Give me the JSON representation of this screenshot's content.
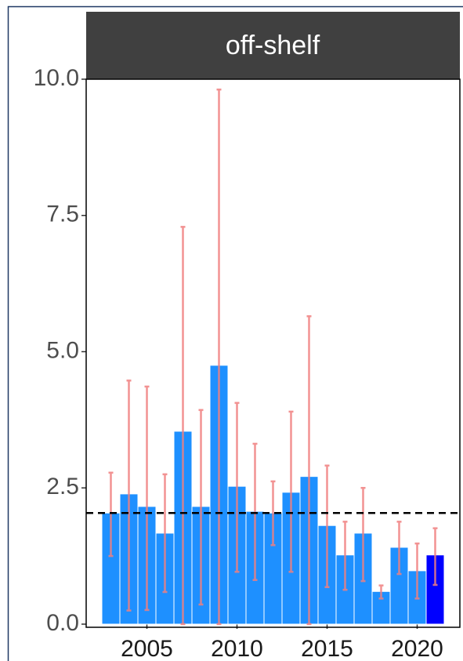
{
  "chart_data": {
    "type": "bar",
    "title": "off-shelf",
    "x": [
      2003,
      2004,
      2005,
      2006,
      2007,
      2008,
      2009,
      2010,
      2011,
      2012,
      2013,
      2014,
      2015,
      2016,
      2017,
      2018,
      2019,
      2020,
      2021
    ],
    "values": [
      2.04,
      2.39,
      2.16,
      1.67,
      3.54,
      2.16,
      4.75,
      2.53,
      2.07,
      2.04,
      2.42,
      2.71,
      1.81,
      1.27,
      1.67,
      0.6,
      1.41,
      0.98,
      1.27
    ],
    "error_low": [
      1.25,
      0.25,
      0.26,
      0.59,
      0,
      0.36,
      0,
      0.96,
      0.81,
      1.45,
      0.96,
      0,
      0.68,
      0.63,
      0.79,
      0.47,
      0.92,
      0.47,
      0.72
    ],
    "error_high": [
      2.78,
      4.47,
      4.36,
      2.75,
      7.29,
      3.93,
      9.81,
      4.06,
      3.31,
      2.62,
      3.9,
      5.65,
      2.91,
      1.88,
      2.5,
      0.71,
      1.88,
      1.48,
      1.76
    ],
    "colors": [
      "#1e90ff",
      "#1e90ff",
      "#1e90ff",
      "#1e90ff",
      "#1e90ff",
      "#1e90ff",
      "#1e90ff",
      "#1e90ff",
      "#1e90ff",
      "#1e90ff",
      "#1e90ff",
      "#1e90ff",
      "#1e90ff",
      "#1e90ff",
      "#1e90ff",
      "#1e90ff",
      "#1e90ff",
      "#1e90ff",
      "#0000ff"
    ],
    "error_color": "#f08080",
    "hline": 2.04,
    "xlim": [
      2001.63,
      2022.37
    ],
    "xticks": [
      2005,
      2010,
      2015,
      2020
    ],
    "ylim": [
      0,
      10
    ],
    "yticks": [
      {
        "value": 0,
        "label": "0.0"
      },
      2.5,
      {
        "value": 5,
        "label": "5.0"
      },
      7.5,
      {
        "value": 10,
        "label": "10.0"
      }
    ]
  }
}
